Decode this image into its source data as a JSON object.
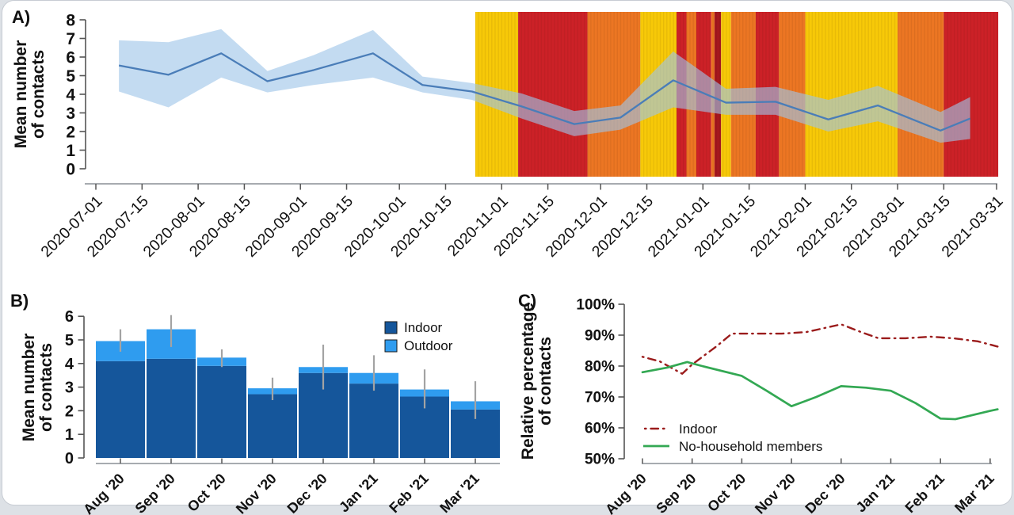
{
  "figure": {
    "panel_a_label": "A)",
    "panel_b_label": "B)",
    "panel_c_label": "C)"
  },
  "palette": {
    "tier_yellow": "#F7C908",
    "tier_orange": "#EC7623",
    "tier_red": "#CC2127",
    "tier_dark_red": "#A5171E",
    "line_blue": "#4A7DB8",
    "band_blue": "rgba(158,197,232,0.62)",
    "bar_indoor": "#15569B",
    "bar_outdoor": "#2F9CEF",
    "errorbar_gray": "#A3A3A3",
    "c_indoor": "#9B1C1C",
    "c_green": "#33A853",
    "axis_line": "#8A8F96",
    "tick": "#555555",
    "text": "#111111"
  },
  "chart_data": [
    {
      "type": "line",
      "panel": "A",
      "ylabel_lines": [
        "Mean number",
        "of contacts"
      ],
      "ylim": [
        0,
        8
      ],
      "yticks": [
        0,
        1,
        2,
        3,
        4,
        5,
        6,
        7,
        8
      ],
      "xtick_days": [
        0,
        14,
        31,
        45,
        62,
        76,
        92,
        106,
        123,
        137,
        153,
        167,
        184,
        198,
        215,
        229,
        243,
        257,
        273
      ],
      "xtick_labels": [
        "2020-07-01",
        "2020-07-15",
        "2020-08-01",
        "2020-08-15",
        "2020-09-01",
        "2020-09-15",
        "2020-10-01",
        "2020-10-15",
        "2020-11-01",
        "2020-11-15",
        "2020-12-01",
        "2020-12-15",
        "2021-01-01",
        "2021-01-15",
        "2021-02-01",
        "2021-02-15",
        "2021-03-01",
        "2021-03-15",
        "2021-03-31"
      ],
      "x_days": [
        7,
        22,
        38,
        52,
        66,
        84,
        99,
        114,
        129,
        145,
        159,
        175,
        191,
        206,
        222,
        237,
        256,
        265
      ],
      "mean": [
        5.55,
        5.05,
        6.2,
        4.7,
        5.3,
        6.2,
        4.5,
        4.15,
        3.35,
        2.4,
        2.75,
        4.75,
        3.55,
        3.6,
        2.65,
        3.4,
        2.05,
        2.7
      ],
      "band_low": [
        4.15,
        3.3,
        4.9,
        4.1,
        4.5,
        4.9,
        4.1,
        3.7,
        2.7,
        1.75,
        2.1,
        3.3,
        2.9,
        2.9,
        2.0,
        2.55,
        1.4,
        1.6
      ],
      "band_high": [
        6.9,
        6.8,
        7.5,
        5.25,
        6.1,
        7.45,
        4.95,
        4.6,
        4.05,
        3.1,
        3.4,
        6.3,
        4.3,
        4.4,
        3.7,
        4.45,
        3.05,
        3.85
      ],
      "tiers": [
        {
          "from": 115,
          "to": 128,
          "tier": "yellow"
        },
        {
          "from": 128,
          "to": 149,
          "tier": "red"
        },
        {
          "from": 149,
          "to": 165,
          "tier": "orange"
        },
        {
          "from": 165,
          "to": 176,
          "tier": "yellow"
        },
        {
          "from": 176,
          "to": 179,
          "tier": "red"
        },
        {
          "from": 179,
          "to": 182,
          "tier": "orange"
        },
        {
          "from": 182,
          "to": 186.5,
          "tier": "red"
        },
        {
          "from": 186.5,
          "to": 187.5,
          "tier": "orange"
        },
        {
          "from": 187.5,
          "to": 189.5,
          "tier": "dark_red"
        },
        {
          "from": 189.5,
          "to": 192.5,
          "tier": "yellow"
        },
        {
          "from": 192.5,
          "to": 200,
          "tier": "orange"
        },
        {
          "from": 200,
          "to": 207,
          "tier": "red"
        },
        {
          "from": 207,
          "to": 215,
          "tier": "orange"
        },
        {
          "from": 215,
          "to": 243,
          "tier": "yellow"
        },
        {
          "from": 243,
          "to": 257,
          "tier": "orange"
        },
        {
          "from": 257,
          "to": 273.5,
          "tier": "red"
        }
      ]
    },
    {
      "type": "bar",
      "panel": "B",
      "ylabel_lines": [
        "Mean number",
        "of contacts"
      ],
      "ylim": [
        0,
        6
      ],
      "yticks": [
        0,
        1,
        2,
        3,
        4,
        5,
        6
      ],
      "categories": [
        "Aug '20",
        "Sep '20",
        "Oct '20",
        "Nov '20",
        "Dec '20",
        "Jan '21",
        "Feb '21",
        "Mar '21"
      ],
      "series": [
        {
          "name": "Indoor",
          "values": [
            4.1,
            4.2,
            3.9,
            2.7,
            3.6,
            3.15,
            2.6,
            2.05
          ]
        },
        {
          "name": "Outdoor",
          "values": [
            0.85,
            1.25,
            0.35,
            0.25,
            0.25,
            0.45,
            0.3,
            0.35
          ]
        }
      ],
      "error_low": [
        4.5,
        4.7,
        3.85,
        2.45,
        2.9,
        2.85,
        2.1,
        1.65
      ],
      "error_high": [
        5.45,
        6.05,
        4.6,
        3.4,
        4.8,
        4.35,
        3.75,
        3.25
      ]
    },
    {
      "type": "line",
      "panel": "C",
      "ylabel_lines": [
        "Relative percentage",
        "of contacts"
      ],
      "ylim": [
        50,
        100
      ],
      "ytick_values": [
        100,
        90,
        80,
        70,
        60,
        50
      ],
      "ytick_labels": [
        "100%",
        "90%",
        "80%",
        "70%",
        "60%",
        "50%"
      ],
      "categories": [
        "Aug '20",
        "Sep '20",
        "Oct '20",
        "Nov '20",
        "Dec '20",
        "Jan '21",
        "Feb '21",
        "Mar '21"
      ],
      "series": [
        {
          "name": "Indoor",
          "style": "dashdot",
          "color": "c_indoor",
          "x": [
            0,
            0.35,
            0.8,
            1.0,
            1.5,
            1.8,
            2.3,
            2.8,
            3.3,
            4.0,
            4.4,
            4.75,
            5.3,
            5.8,
            6.25,
            6.75,
            7.15
          ],
          "y": [
            83,
            81.5,
            77.5,
            80.5,
            86.5,
            90.5,
            90.5,
            90.5,
            91,
            93.5,
            91,
            89,
            89,
            89.5,
            89,
            88,
            86.3
          ]
        },
        {
          "name": "No-household members",
          "style": "solid",
          "color": "c_green",
          "x": [
            0,
            0.5,
            0.9,
            1.2,
            2.0,
            2.5,
            3.0,
            3.5,
            4.0,
            4.5,
            5.0,
            5.5,
            6.0,
            6.3,
            7.0,
            7.15
          ],
          "y": [
            78,
            79.5,
            81.3,
            80,
            76.8,
            72,
            67,
            70,
            73.5,
            73,
            72,
            68,
            63,
            62.8,
            65.5,
            66
          ]
        }
      ]
    }
  ]
}
